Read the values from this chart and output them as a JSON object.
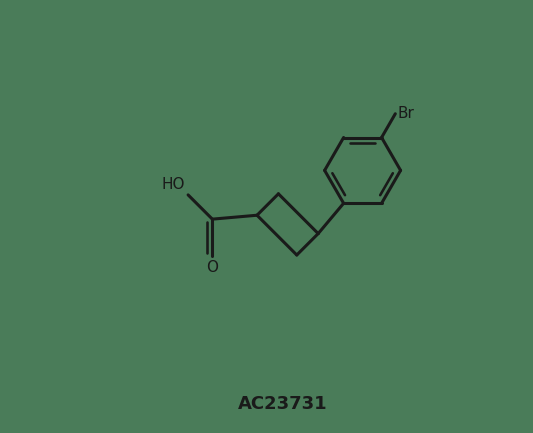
{
  "background_color": "#4a7c59",
  "line_color": "#1a1a1a",
  "line_width": 2.2,
  "label": "AC23731",
  "label_fontsize": 13,
  "label_bold": true,
  "label_color": "#1a1a1a",
  "text_fontsize": 11,
  "atom_label_color": "#1a1a1a",
  "xlim": [
    0,
    10
  ],
  "ylim": [
    0,
    8
  ]
}
